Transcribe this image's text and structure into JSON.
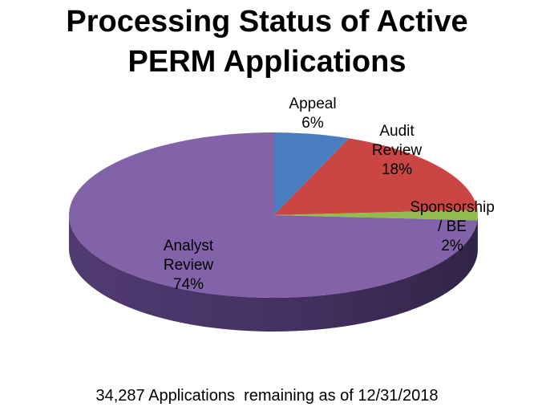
{
  "chart_data": {
    "type": "pie",
    "title_lines": [
      "Processing Status of Active",
      "PERM Applications"
    ],
    "slices": [
      {
        "name_lines": [
          "Appeal"
        ],
        "value": 6,
        "value_label": "6%",
        "color": "#4A7EC1",
        "side_color": "#2E5A8E"
      },
      {
        "name_lines": [
          "Audit",
          "Review"
        ],
        "value": 18,
        "value_label": "18%",
        "color": "#C94645",
        "side_color": "#8E2E2D"
      },
      {
        "name_lines": [
          "Sponsorship",
          "/ BE"
        ],
        "value": 2,
        "value_label": "2%",
        "color": "#92BD4E",
        "side_color": "#688A34"
      },
      {
        "name_lines": [
          "Analyst",
          "Review"
        ],
        "value": 74,
        "value_label": "74%",
        "color": "#8262A8",
        "side_color": "#5A4180"
      }
    ],
    "footnote": "34,287 Applications  remaining as of 12/31/2018"
  }
}
